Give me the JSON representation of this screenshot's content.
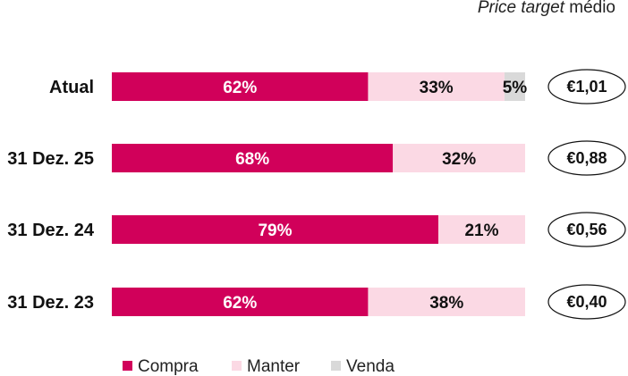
{
  "chart_data": {
    "type": "bar",
    "orientation": "horizontal",
    "stacked": true,
    "normalized": true,
    "categories": [
      "Atual",
      "31 Dez. 25",
      "31 Dez. 24",
      "31 Dez. 23"
    ],
    "series": [
      {
        "name": "Compra",
        "values": [
          62,
          68,
          79,
          62
        ],
        "labels": [
          "62%",
          "68%",
          "79%",
          "62%"
        ],
        "color": "#d1005a"
      },
      {
        "name": "Manter",
        "values": [
          33,
          32,
          21,
          38
        ],
        "labels": [
          "33%",
          "32%",
          "21%",
          "38%"
        ],
        "color": "#fbd9e4"
      },
      {
        "name": "Venda",
        "values": [
          5,
          0,
          0,
          0
        ],
        "labels": [
          "5%",
          "",
          "",
          ""
        ],
        "color": "#d9d9d9"
      }
    ],
    "price_target": {
      "header_italic": "Price target",
      "header_rest": "médio",
      "values": [
        "€1,01",
        "€0,88",
        "€0,56",
        "€0,40"
      ]
    },
    "xlim": [
      0,
      100
    ],
    "grid": false,
    "legend": "bottom"
  }
}
